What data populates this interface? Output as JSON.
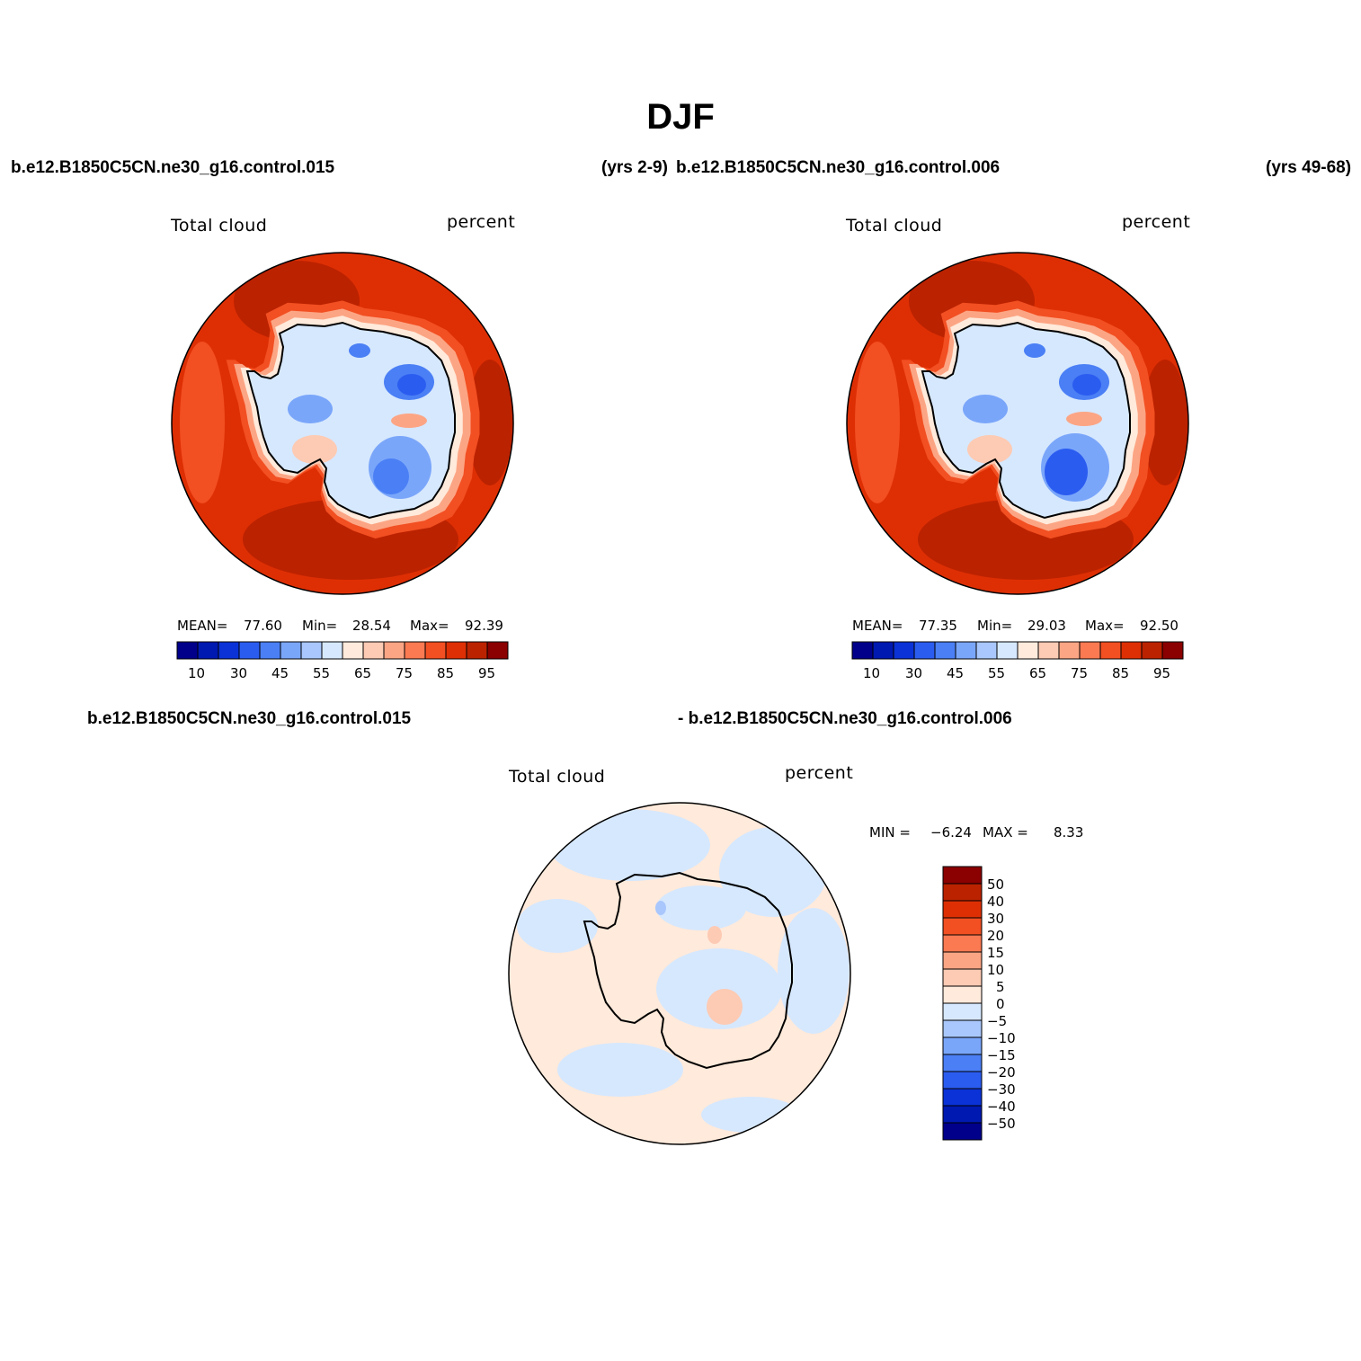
{
  "title": "DJF",
  "headers": {
    "case1": "b.e12.B1850C5CN.ne30_g16.control.015",
    "case1_years": "(yrs 2-9)",
    "case2": "b.e12.B1850C5CN.ne30_g16.control.006",
    "case2_years": "(yrs 49-68)",
    "diff_left": "b.e12.B1850C5CN.ne30_g16.control.015",
    "diff_right": "- b.e12.B1850C5CN.ne30_g16.control.006"
  },
  "panels": [
    {
      "variable": "Total cloud",
      "units": "percent",
      "stats": {
        "mean_label": "MEAN=",
        "mean": "77.60",
        "min_label": "Min=",
        "min": "28.54",
        "max_label": "Max=",
        "max": "92.39"
      }
    },
    {
      "variable": "Total cloud",
      "units": "percent",
      "stats": {
        "mean_label": "MEAN=",
        "mean": "77.35",
        "min_label": "Min=",
        "min": "29.03",
        "max_label": "Max=",
        "max": "92.50"
      }
    },
    {
      "variable": "Total cloud",
      "units": "percent",
      "stats": {
        "min_label": "MIN =",
        "min": "−6.24",
        "max_label": "MAX =",
        "max": "8.33"
      }
    }
  ],
  "colorbar_abs": {
    "colors": [
      "#00008b",
      "#0019b0",
      "#0a32d6",
      "#2b5cf0",
      "#4a7ff5",
      "#7aa6fa",
      "#a9c7fd",
      "#d6e8fe",
      "#ffeadb",
      "#fdcab3",
      "#fca584",
      "#fb7a52",
      "#f24f22",
      "#de2f04",
      "#bb2200",
      "#8b0000"
    ],
    "tick_labels": [
      "10",
      "30",
      "45",
      "55",
      "65",
      "75",
      "85",
      "95"
    ]
  },
  "colorbar_diff": {
    "colors": [
      "#8b0000",
      "#bb2200",
      "#de2f04",
      "#f24f22",
      "#fb7a52",
      "#fca584",
      "#fdcab3",
      "#ffeadb",
      "#d6e8fe",
      "#a9c7fd",
      "#7aa6fa",
      "#4a7ff5",
      "#2b5cf0",
      "#0a32d6",
      "#0019b0",
      "#00008b"
    ],
    "tick_labels": [
      "50",
      "40",
      "30",
      "20",
      "15",
      "10",
      "5",
      "0",
      "−5",
      "−10",
      "−15",
      "−20",
      "−30",
      "−40",
      "−50"
    ]
  }
}
